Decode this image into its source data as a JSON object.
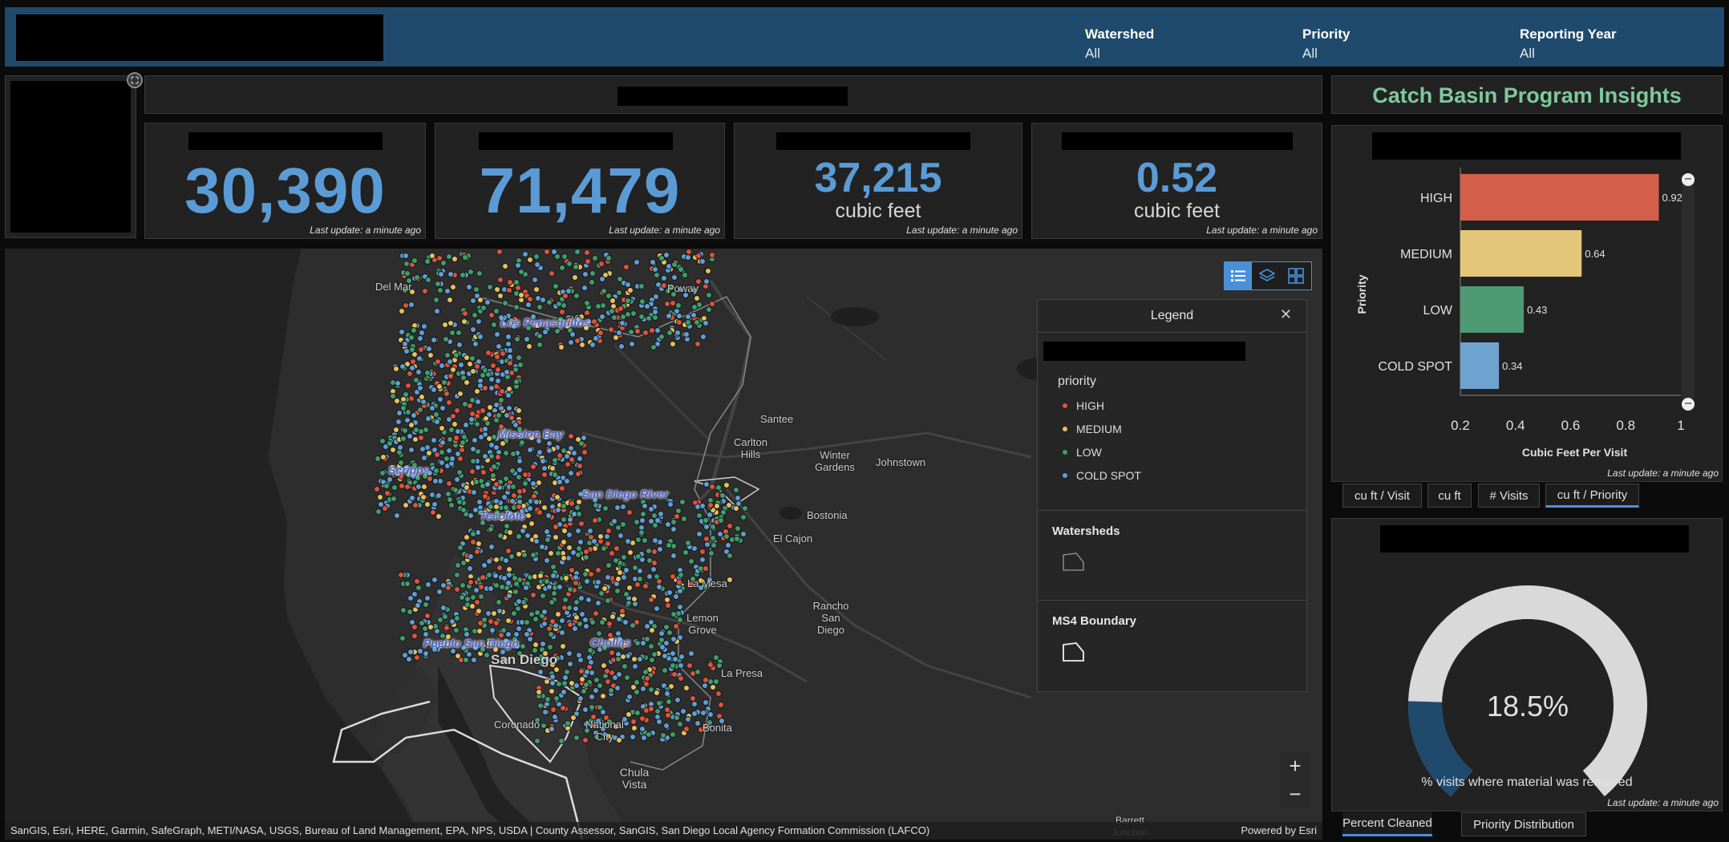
{
  "header": {
    "filters": [
      {
        "label": "Watershed",
        "value": "All"
      },
      {
        "label": "Priority",
        "value": "All"
      },
      {
        "label": "Reporting Year",
        "value": "All"
      }
    ]
  },
  "kpis": [
    {
      "value": "30,390",
      "unit": "",
      "update": "Last update: a minute ago"
    },
    {
      "value": "71,479",
      "unit": "",
      "update": "Last update: a minute ago"
    },
    {
      "value": "37,215",
      "unit": "cubic feet",
      "update": "Last update: a minute ago"
    },
    {
      "value": "0.52",
      "unit": "cubic feet",
      "update": "Last update: a minute ago"
    }
  ],
  "insights": {
    "title": "Catch Basin Program Insights"
  },
  "bar_panel": {
    "update": "Last update: a minute ago",
    "tabs": [
      "cu ft / Visit",
      "cu ft",
      "# Visits",
      "cu ft / Priority"
    ],
    "active_tab": 3
  },
  "gauge_panel": {
    "value_text": "18.5%",
    "caption": "% visits where material was removed",
    "update": "Last update: a minute ago",
    "tabs": [
      "Percent Cleaned",
      "Priority Distribution"
    ],
    "active_tab": 0
  },
  "chart_data": [
    {
      "type": "bar",
      "orientation": "horizontal",
      "categories": [
        "HIGH",
        "MEDIUM",
        "LOW",
        "COLD SPOT"
      ],
      "values": [
        0.92,
        0.64,
        0.43,
        0.34
      ],
      "data_labels": [
        "0.92",
        "0.64",
        "0.43",
        "0.34"
      ],
      "colors": [
        "#d4604c",
        "#e3c67a",
        "#4e9a72",
        "#6fa3cf"
      ],
      "xlabel": "Cubic Feet Per Visit",
      "ylabel": "Priority",
      "xlim": [
        0.2,
        1
      ],
      "xticks": [
        "0.2",
        "0.4",
        "0.6",
        "0.8",
        "1"
      ]
    },
    {
      "type": "gauge",
      "value": 18.5,
      "range": [
        0,
        100
      ],
      "label": "18.5%",
      "fill_color": "#1f4a6e",
      "track_color": "#d9d9d9"
    }
  ],
  "legend": {
    "title": "Legend",
    "priority_heading": "priority",
    "items": [
      {
        "label": "HIGH",
        "color": "#e0533c"
      },
      {
        "label": "MEDIUM",
        "color": "#e6c15a"
      },
      {
        "label": "LOW",
        "color": "#3f9e6e"
      },
      {
        "label": "COLD SPOT",
        "color": "#5f9fd6"
      }
    ],
    "watersheds_heading": "Watersheds",
    "ms4_heading": "MS4 Boundary"
  },
  "map": {
    "places": [
      "Del Mar",
      "Poway",
      "Santee",
      "Carlton Hills",
      "Winter Gardens",
      "Johnstown",
      "Bostonia",
      "El Cajon",
      "La Mesa",
      "Lemon Grove",
      "Rancho San Diego",
      "San Diego",
      "La Presa",
      "Coronado",
      "National City",
      "Bonita",
      "Chula Vista",
      "Barrett Junction"
    ],
    "watersheds": [
      "Los Penasquitos",
      "Mission Bay",
      "Scripps",
      "Tecolote",
      "San Diego River",
      "Pueblo San Diego",
      "Chollas"
    ],
    "attribution": "SanGIS, Esri, HERE, Garmin, SafeGraph, METI/NASA, USGS, Bureau of Land Management, EPA, NPS, USDA | County Assessor, SanGIS, San Diego Local Agency Formation Commission (LAFCO)",
    "powered_by": "Powered by Esri",
    "zoom_in": "+",
    "zoom_out": "−"
  }
}
